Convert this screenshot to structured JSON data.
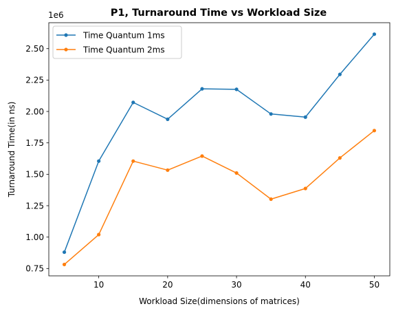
{
  "chart_data": {
    "type": "line",
    "title": "P1, Turnaround Time vs Workload Size",
    "xlabel": "Workload Size(dimensions of matrices)",
    "ylabel": "Turnaround Time(in ns)",
    "y_offset_label": "1e6",
    "x": [
      5,
      10,
      15,
      20,
      25,
      30,
      35,
      40,
      45,
      50
    ],
    "xlim": [
      2.75,
      52.25
    ],
    "ylim": [
      0.6915,
      2.7065
    ],
    "x_ticks": [
      10,
      20,
      30,
      40,
      50
    ],
    "x_tick_labels": [
      "10",
      "20",
      "30",
      "40",
      "50"
    ],
    "y_ticks": [
      0.75,
      1.0,
      1.25,
      1.5,
      1.75,
      2.0,
      2.25,
      2.5
    ],
    "y_tick_labels": [
      "0.75",
      "1.00",
      "1.25",
      "1.50",
      "1.75",
      "2.00",
      "2.25",
      "2.50"
    ],
    "grid": false,
    "legend_position": "top-left",
    "series": [
      {
        "name": "Time Quantum 1ms",
        "color": "#1f77b4",
        "values": [
          0.88,
          1.605,
          2.072,
          1.938,
          2.18,
          2.176,
          1.98,
          1.955,
          2.295,
          2.615
        ]
      },
      {
        "name": "Time Quantum 2ms",
        "color": "#ff7f0e",
        "values": [
          0.782,
          1.02,
          1.605,
          1.533,
          1.645,
          1.51,
          1.302,
          1.387,
          1.63,
          1.848
        ]
      }
    ]
  }
}
